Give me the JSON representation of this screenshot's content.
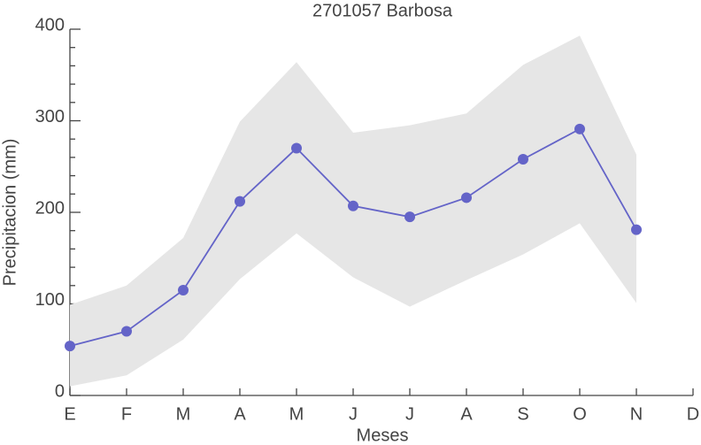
{
  "chart_data": {
    "type": "line",
    "title": "2701057 Barbosa",
    "xlabel": "Meses",
    "ylabel": "Precipitacion (mm)",
    "categories": [
      "E",
      "F",
      "M",
      "A",
      "M",
      "J",
      "J",
      "A",
      "S",
      "O",
      "N",
      "D"
    ],
    "series": [
      {
        "color": "#6464c8",
        "values": [
          54,
          70,
          115,
          212,
          270,
          207,
          195,
          216,
          258,
          291,
          181,
          null
        ]
      }
    ],
    "band": {
      "color": "#e6e6e6",
      "upper": [
        99,
        120,
        172,
        299,
        364,
        287,
        295,
        308,
        361,
        393,
        263,
        null
      ],
      "lower": [
        10,
        22,
        61,
        127,
        177,
        129,
        97,
        126,
        154,
        188,
        101,
        null
      ]
    },
    "ylim": [
      0,
      400
    ],
    "yticks": [
      0,
      100,
      200,
      300,
      400
    ]
  }
}
